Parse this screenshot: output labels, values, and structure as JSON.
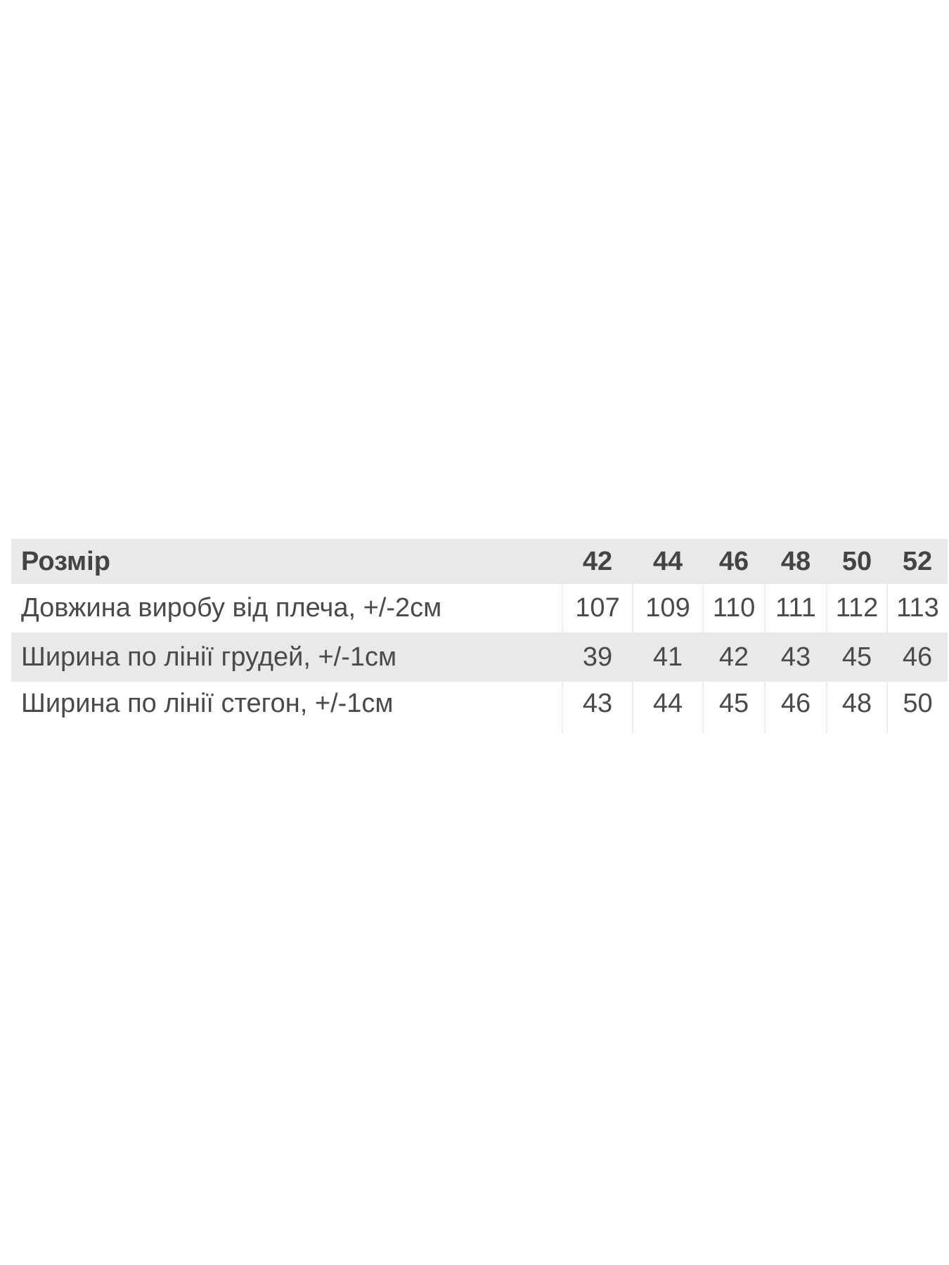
{
  "table": {
    "header": {
      "label": "Розмір",
      "sizes": [
        "42",
        "44",
        "46",
        "48",
        "50",
        "52"
      ]
    },
    "rows": [
      {
        "label": "Довжина виробу від плеча, +/-2см",
        "values": [
          "107",
          "109",
          "110",
          "111",
          "112",
          "113"
        ]
      },
      {
        "label": "Ширина по лінії грудей, +/-1см",
        "values": [
          "39",
          "41",
          "42",
          "43",
          "45",
          "46"
        ]
      },
      {
        "label": "Ширина по лінії стегон, +/-1см",
        "values": [
          "43",
          "44",
          "45",
          "46",
          "48",
          "50"
        ]
      }
    ]
  }
}
